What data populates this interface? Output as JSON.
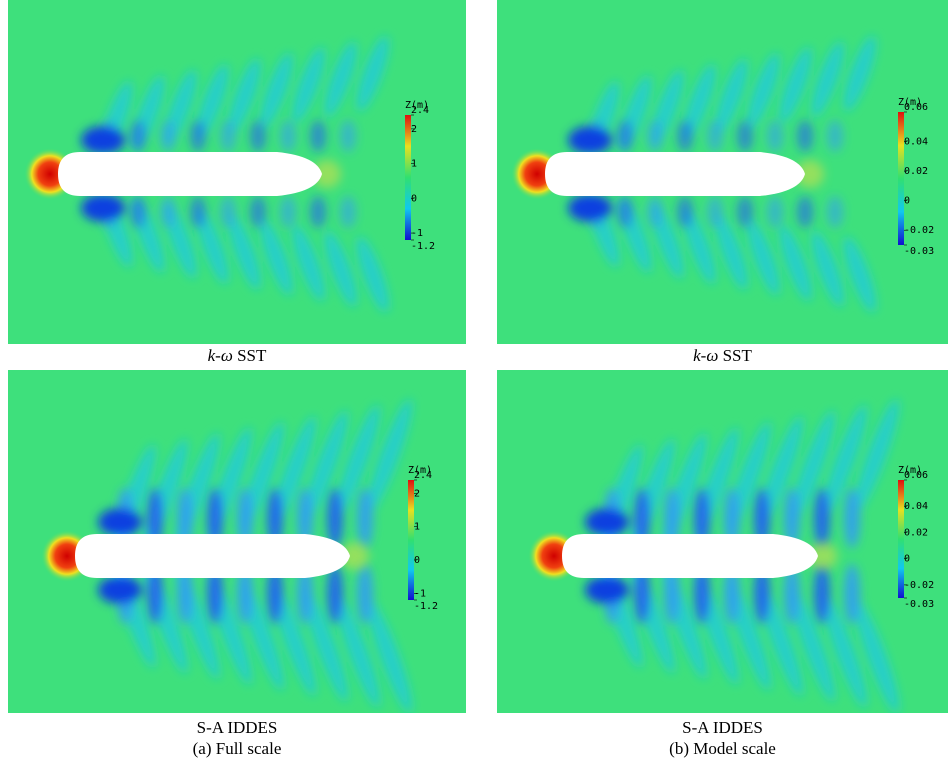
{
  "panels": [
    {
      "colorbar": {
        "title": "Z(m)",
        "ticks": [
          2.4,
          2,
          1,
          0,
          -1,
          -1.2
        ]
      },
      "caption": {
        "italic": "k-ω",
        "text": "SST"
      }
    },
    {
      "colorbar": {
        "title": "Z(m)",
        "ticks": [
          0.06,
          0.04,
          0.02,
          0,
          -0.02,
          -0.03
        ]
      },
      "caption": {
        "italic": "k-ω",
        "text": "SST"
      }
    },
    {
      "colorbar": {
        "title": "Z(m)",
        "ticks": [
          2.4,
          2,
          1,
          0,
          -1,
          -1.2
        ]
      },
      "caption": {
        "text": "S-A IDDES"
      }
    },
    {
      "colorbar": {
        "title": "Z(m)",
        "ticks": [
          0.06,
          0.04,
          0.02,
          0,
          -0.02,
          -0.03
        ]
      },
      "caption": {
        "text": "S-A IDDES"
      }
    }
  ],
  "subcaptions": [
    "(a) Full scale",
    "(b) Model scale"
  ]
}
